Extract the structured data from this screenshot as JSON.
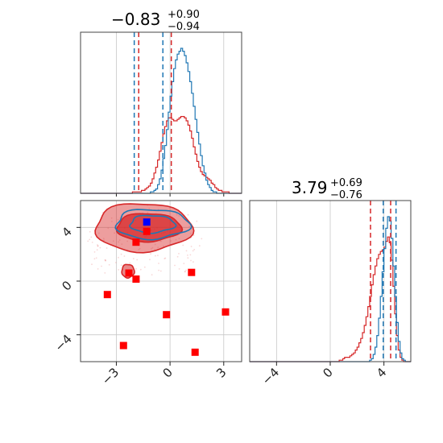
{
  "chart_data": {
    "type": "corner",
    "colors": {
      "blue": "#1f77b4",
      "red": "#d62728",
      "marker_blue": "#0000ff",
      "marker_red": "#ff0000",
      "grid": "#c8c8c8"
    },
    "titles": {
      "param1": {
        "median": "−0.83",
        "plus": "+0.90",
        "minus": "−0.94"
      },
      "param2": {
        "median": "3.79",
        "plus": "+0.69",
        "minus": "−0.76"
      }
    },
    "axes": {
      "param1": {
        "range": [
          -5.0,
          4.0
        ],
        "ticks": [
          -3,
          0,
          3
        ],
        "tick_labels": [
          "−3",
          "0",
          "3"
        ]
      },
      "param2": {
        "range": [
          -6.0,
          6.0
        ],
        "ticks": [
          -4,
          0,
          4
        ],
        "tick_labels": [
          "−4",
          "0",
          "4"
        ]
      }
    },
    "grid": true,
    "hist_param1": {
      "x_range": [
        -5.0,
        4.0
      ],
      "blue": [
        0,
        0,
        0,
        0,
        0,
        0,
        0,
        0,
        0,
        0,
        0,
        0,
        0,
        0,
        0,
        0,
        0,
        0,
        0,
        0,
        0,
        0,
        0,
        0,
        0,
        0,
        0,
        0,
        0,
        0,
        0,
        0,
        0,
        0,
        0,
        0,
        0,
        0,
        0,
        0.01,
        0.01,
        0.02,
        0.03,
        0.06,
        0.1,
        0.16,
        0.24,
        0.33,
        0.44,
        0.56,
        0.67,
        0.77,
        0.86,
        0.92,
        0.96,
        0.98,
        1.0,
        0.98,
        0.95,
        0.9,
        0.84,
        0.77,
        0.69,
        0.6,
        0.51,
        0.42,
        0.34,
        0.26,
        0.19,
        0.14,
        0.09,
        0.06,
        0.04,
        0.02,
        0.01,
        0.01,
        0,
        0,
        0,
        0,
        0,
        0,
        0,
        0,
        0,
        0,
        0,
        0,
        0,
        0
      ],
      "red": [
        0,
        0,
        0,
        0,
        0,
        0,
        0,
        0,
        0,
        0,
        0,
        0,
        0,
        0,
        0,
        0,
        0,
        0,
        0,
        0,
        0,
        0,
        0,
        0,
        0,
        0,
        0,
        0,
        0,
        0.01,
        0.01,
        0.01,
        0.01,
        0.01,
        0.02,
        0.02,
        0.03,
        0.04,
        0.05,
        0.07,
        0.1,
        0.14,
        0.18,
        0.23,
        0.29,
        0.35,
        0.41,
        0.46,
        0.5,
        0.52,
        0.52,
        0.51,
        0.5,
        0.5,
        0.51,
        0.52,
        0.53,
        0.53,
        0.52,
        0.5,
        0.47,
        0.43,
        0.38,
        0.32,
        0.27,
        0.22,
        0.18,
        0.15,
        0.13,
        0.12,
        0.11,
        0.1,
        0.09,
        0.07,
        0.06,
        0.04,
        0.03,
        0.02,
        0.02,
        0.01,
        0.01,
        0.01,
        0.01,
        0,
        0,
        0,
        0,
        0,
        0,
        0
      ],
      "blue_quantiles": [
        -2.0,
        -0.4
      ],
      "red_quantiles": [
        -1.75,
        0.07
      ]
    },
    "hist_param2": {
      "x_range": [
        -6.0,
        6.0
      ],
      "blue": [
        0,
        0,
        0,
        0,
        0,
        0,
        0,
        0,
        0,
        0,
        0,
        0,
        0,
        0,
        0,
        0,
        0,
        0,
        0,
        0,
        0,
        0,
        0,
        0,
        0,
        0,
        0,
        0,
        0,
        0,
        0,
        0,
        0,
        0,
        0,
        0,
        0,
        0,
        0,
        0,
        0,
        0,
        0,
        0,
        0,
        0,
        0,
        0,
        0,
        0,
        0,
        0,
        0,
        0,
        0,
        0,
        0,
        0,
        0,
        0,
        0,
        0,
        0,
        0,
        0,
        0,
        0,
        0.01,
        0.02,
        0.05,
        0.1,
        0.18,
        0.3,
        0.45,
        0.62,
        0.78,
        0.92,
        1.0,
        0.97,
        0.85,
        0.66,
        0.45,
        0.27,
        0.14,
        0.06,
        0.02,
        0.01,
        0,
        0,
        0
      ],
      "red": [
        0,
        0,
        0,
        0,
        0,
        0,
        0,
        0,
        0,
        0,
        0,
        0,
        0,
        0,
        0,
        0,
        0,
        0,
        0,
        0,
        0,
        0,
        0,
        0,
        0,
        0,
        0,
        0,
        0,
        0,
        0,
        0,
        0,
        0,
        0,
        0,
        0,
        0,
        0,
        0,
        0,
        0,
        0,
        0,
        0,
        0,
        0,
        0,
        0,
        0,
        0.01,
        0.01,
        0.02,
        0.03,
        0.03,
        0.03,
        0.04,
        0.05,
        0.06,
        0.08,
        0.1,
        0.13,
        0.16,
        0.2,
        0.25,
        0.31,
        0.38,
        0.45,
        0.53,
        0.6,
        0.66,
        0.71,
        0.74,
        0.76,
        0.77,
        0.79,
        0.83,
        0.86,
        0.82,
        0.7,
        0.52,
        0.33,
        0.18,
        0.08,
        0.03,
        0.01,
        0,
        0,
        0,
        0
      ],
      "blue_quantiles": [
        3.95,
        4.9
      ],
      "red_quantiles": [
        3.0,
        4.5
      ]
    },
    "scatter_2d": {
      "contour_red": [
        {
          "cx": -1.5,
          "cy": 4.0,
          "rx": 2.7,
          "ry": 1.8,
          "fill_opacity": 0.45
        },
        {
          "cx": -1.2,
          "cy": 4.0,
          "rx": 1.8,
          "ry": 1.05,
          "fill_opacity": 0.75
        },
        {
          "cx": -2.35,
          "cy": 0.75,
          "rx": 0.35,
          "ry": 0.5,
          "fill_opacity": 0.55
        }
      ],
      "contour_blue": [
        {
          "cx": -1.0,
          "cy": 4.25,
          "rx": 2.05,
          "ry": 1.1
        },
        {
          "cx": -1.0,
          "cy": 4.25,
          "rx": 1.25,
          "ry": 0.65
        }
      ],
      "red_markers": [
        [
          -1.9,
          2.9
        ],
        [
          -2.3,
          0.6
        ],
        [
          -1.9,
          0.15
        ],
        [
          1.2,
          0.65
        ],
        [
          -3.5,
          -1.0
        ],
        [
          -0.2,
          -2.5
        ],
        [
          3.1,
          -2.3
        ],
        [
          -2.6,
          -4.8
        ],
        [
          1.4,
          -5.3
        ],
        [
          -1.3,
          3.7
        ]
      ],
      "blue_marker": [
        -1.3,
        4.4
      ]
    }
  }
}
